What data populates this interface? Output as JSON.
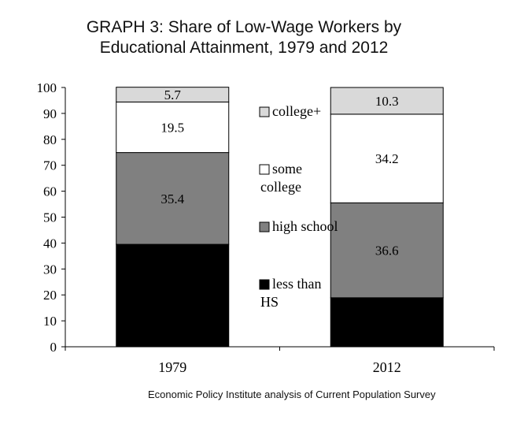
{
  "chart_data": {
    "type": "bar",
    "stacked": true,
    "title_lines": [
      "GRAPH 3: Share of Low-Wage Workers by",
      "Educational Attainment, 1979 and 2012"
    ],
    "categories": [
      "1979",
      "2012"
    ],
    "series": [
      {
        "name": "less than HS",
        "legend_lines": [
          "less than",
          "HS"
        ],
        "color": "#000000",
        "label_color": "#ffffff",
        "values": [
          39.5,
          18.9
        ]
      },
      {
        "name": "high school",
        "legend_lines": [
          "high school"
        ],
        "color": "#808080",
        "label_color": "#000000",
        "values": [
          35.4,
          36.6
        ]
      },
      {
        "name": "some college",
        "legend_lines": [
          "some",
          "college"
        ],
        "color": "#ffffff",
        "label_color": "#000000",
        "values": [
          19.5,
          34.2
        ]
      },
      {
        "name": "college+",
        "legend_lines": [
          "college+"
        ],
        "color": "#d9d9d9",
        "label_color": "#000000",
        "values": [
          5.7,
          10.3
        ]
      }
    ],
    "y_ticks": [
      "0",
      "10",
      "20",
      "30",
      "40",
      "50",
      "60",
      "70",
      "80",
      "90",
      "100"
    ],
    "ylim": [
      0,
      100
    ],
    "legend_position": "center",
    "grid": false
  },
  "source": "Economic Policy Institute analysis of Current Population Survey"
}
